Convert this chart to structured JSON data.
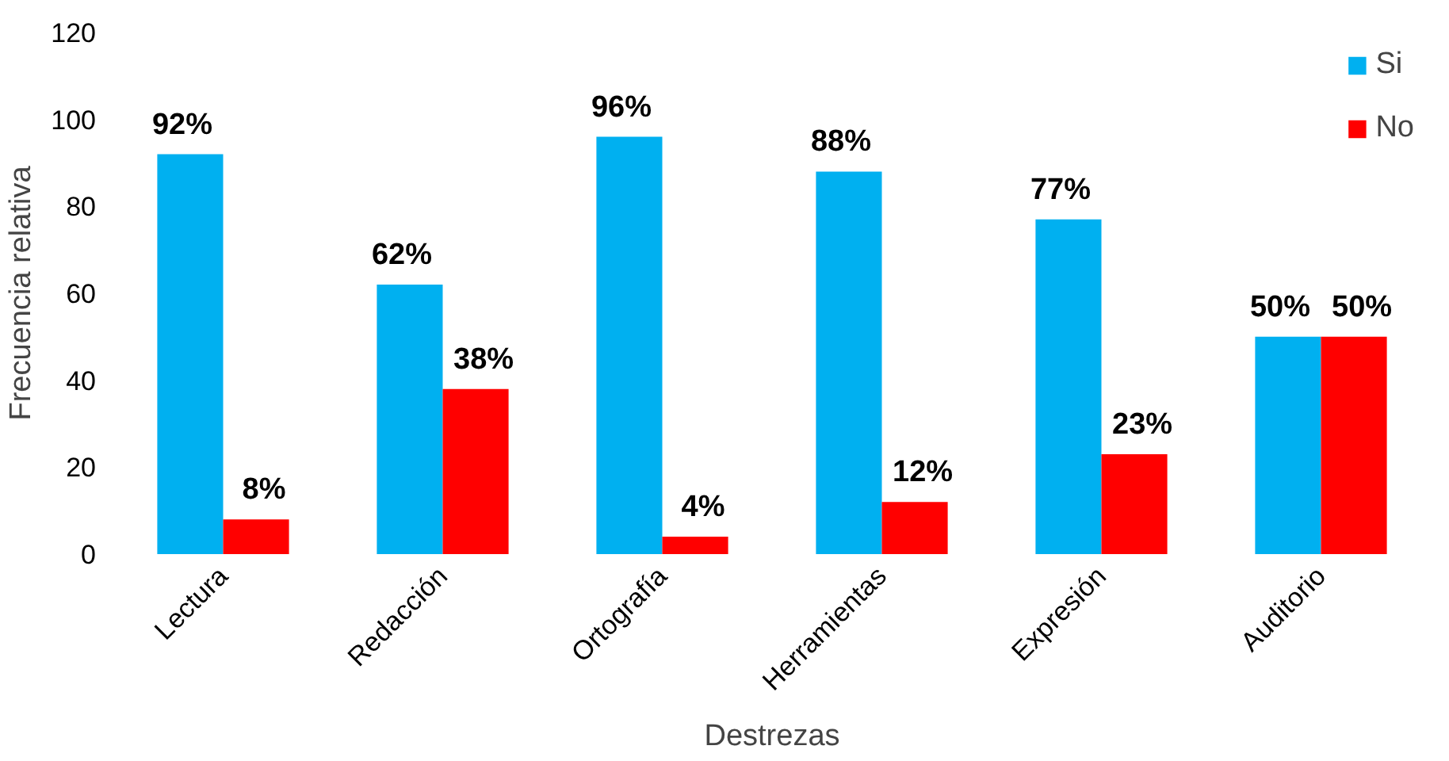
{
  "chart_data": {
    "type": "bar",
    "xlabel": "Destrezas",
    "ylabel": "Frecuencia relativa",
    "categories": [
      "Lectura",
      "Redacción",
      "Ortografía",
      "Herramientas",
      "Expresión",
      "Auditorio"
    ],
    "series": [
      {
        "name": "Si",
        "color": "#00b0f0",
        "values": [
          92,
          62,
          96,
          88,
          77,
          50
        ],
        "value_labels": [
          "92%",
          "62%",
          "96%",
          "88%",
          "77%",
          "50%"
        ]
      },
      {
        "name": "No",
        "color": "#ff0000",
        "values": [
          8,
          38,
          4,
          12,
          23,
          50
        ],
        "value_labels": [
          "8%",
          "38%",
          "4%",
          "12%",
          "23%",
          "50%"
        ]
      }
    ],
    "ylim": [
      0,
      120
    ],
    "yticks": [
      0,
      20,
      40,
      60,
      80,
      100,
      120
    ],
    "grid": false,
    "legend": "top right"
  }
}
